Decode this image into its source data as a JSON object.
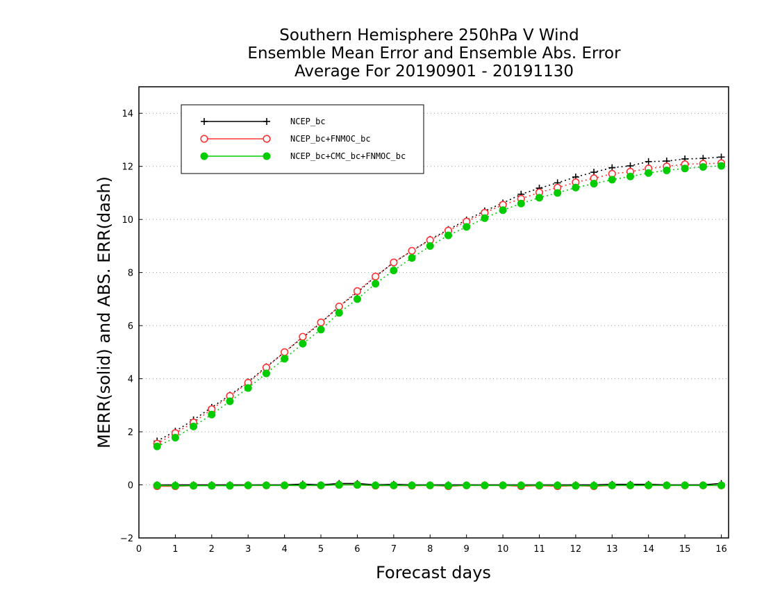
{
  "chart_data": {
    "type": "line",
    "title": [
      "Southern Hemisphere 250hPa V Wind",
      "Ensemble Mean Error and Ensemble Abs. Error",
      "Average For 20190901 - 20191130"
    ],
    "xlabel": "Forecast days",
    "ylabel": "MERR(solid) and ABS. ERR(dash)",
    "xlim": [
      0,
      16.2
    ],
    "ylim": [
      -2,
      15
    ],
    "xticks": [
      0,
      1,
      2,
      3,
      4,
      5,
      6,
      7,
      8,
      9,
      10,
      11,
      12,
      13,
      14,
      15,
      16
    ],
    "yticks": [
      -2,
      0,
      2,
      4,
      6,
      8,
      10,
      12,
      14
    ],
    "grid": "horizontal dotted",
    "legend_position": "top-left",
    "x": [
      0.5,
      1,
      1.5,
      2,
      2.5,
      3,
      3.5,
      4,
      4.5,
      5,
      5.5,
      6,
      6.5,
      7,
      7.5,
      8,
      8.5,
      9,
      9.5,
      10,
      10.5,
      11,
      11.5,
      12,
      12.5,
      13,
      13.5,
      14,
      14.5,
      15,
      15.5,
      16
    ],
    "series": [
      {
        "name": "NCEP_bc",
        "color": "#000000",
        "marker": "plus",
        "abs_err": [
          1.65,
          2.02,
          2.45,
          2.92,
          3.38,
          3.88,
          4.45,
          5.0,
          5.55,
          6.1,
          6.72,
          7.25,
          7.85,
          8.38,
          8.82,
          9.25,
          9.62,
          9.98,
          10.32,
          10.62,
          10.95,
          11.18,
          11.38,
          11.6,
          11.78,
          11.95,
          12.02,
          12.18,
          12.2,
          12.28,
          12.3,
          12.35
        ],
        "mean_err": [
          0.0,
          0.0,
          0.0,
          0.0,
          0.0,
          0.0,
          0.0,
          0.0,
          0.03,
          0.0,
          0.05,
          0.05,
          0.0,
          0.02,
          0.0,
          0.0,
          0.0,
          0.0,
          0.0,
          0.0,
          0.0,
          0.0,
          0.0,
          0.0,
          0.0,
          0.02,
          0.02,
          0.02,
          0.0,
          0.0,
          0.0,
          0.05
        ]
      },
      {
        "name": "NCEP_bc+FNMOC_bc",
        "color": "#ff3333",
        "marker": "open-circle",
        "abs_err": [
          1.55,
          1.95,
          2.35,
          2.85,
          3.35,
          3.85,
          4.42,
          5.0,
          5.58,
          6.12,
          6.72,
          7.3,
          7.85,
          8.38,
          8.82,
          9.22,
          9.58,
          9.92,
          10.25,
          10.55,
          10.78,
          11.02,
          11.2,
          11.4,
          11.55,
          11.72,
          11.8,
          11.92,
          12.0,
          12.08,
          12.1,
          12.12
        ],
        "mean_err": [
          -0.05,
          -0.05,
          -0.03,
          -0.03,
          -0.03,
          -0.02,
          -0.02,
          -0.02,
          -0.02,
          -0.02,
          0.0,
          0.0,
          -0.03,
          -0.02,
          -0.03,
          -0.02,
          -0.05,
          -0.02,
          -0.02,
          -0.02,
          -0.05,
          -0.03,
          -0.05,
          -0.03,
          -0.05,
          -0.02,
          -0.02,
          -0.02,
          -0.02,
          -0.02,
          -0.02,
          -0.02
        ]
      },
      {
        "name": "NCEP_bc+CMC_bc+FNMOC_bc",
        "color": "#00cc00",
        "marker": "filled-circle",
        "abs_err": [
          1.45,
          1.78,
          2.2,
          2.65,
          3.15,
          3.65,
          4.2,
          4.75,
          5.32,
          5.85,
          6.48,
          7.0,
          7.58,
          8.08,
          8.55,
          9.0,
          9.4,
          9.72,
          10.05,
          10.35,
          10.6,
          10.82,
          11.0,
          11.2,
          11.35,
          11.5,
          11.62,
          11.75,
          11.85,
          11.92,
          11.98,
          12.02
        ],
        "mean_err": [
          -0.02,
          -0.03,
          -0.03,
          -0.03,
          -0.03,
          -0.02,
          -0.02,
          -0.02,
          -0.02,
          -0.02,
          0.0,
          0.0,
          -0.02,
          -0.02,
          -0.02,
          -0.02,
          -0.03,
          -0.02,
          -0.02,
          -0.02,
          -0.02,
          -0.02,
          -0.02,
          -0.03,
          -0.03,
          -0.02,
          -0.02,
          -0.02,
          -0.02,
          -0.02,
          -0.02,
          -0.02
        ]
      }
    ]
  }
}
